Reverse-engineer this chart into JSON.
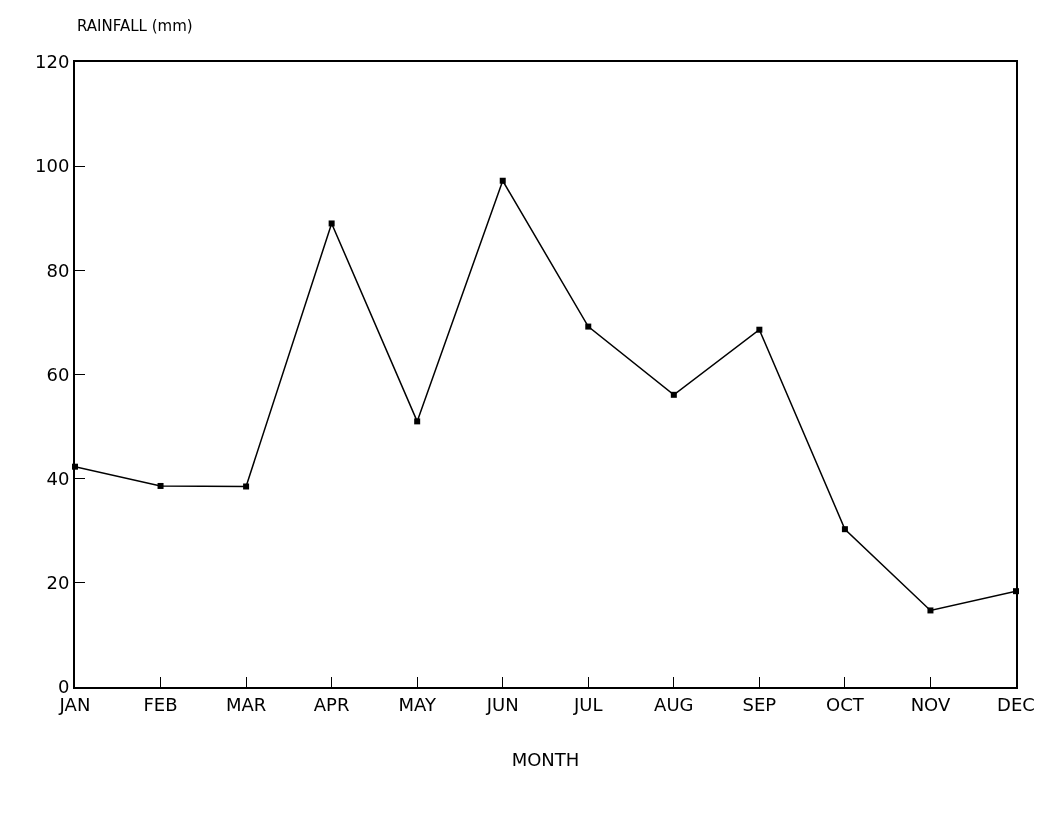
{
  "chart_data": {
    "type": "line",
    "xlabel": "MONTH",
    "ylabel": "RAINFALL (mm)",
    "categories": [
      "JAN",
      "FEB",
      "MAR",
      "APR",
      "MAY",
      "JUN",
      "JUL",
      "AUG",
      "SEP",
      "OCT",
      "NOV",
      "DEC"
    ],
    "series": [
      {
        "color": "#000000",
        "values": [
          42.3,
          38.6,
          38.5,
          89.0,
          51.0,
          97.2,
          69.2,
          56.1,
          68.6,
          30.3,
          14.7,
          18.4
        ]
      }
    ],
    "ylim": [
      0,
      120
    ],
    "yticks": [
      0,
      20,
      40,
      60,
      80,
      100,
      120
    ],
    "marker": "square",
    "line_style": "solid"
  }
}
